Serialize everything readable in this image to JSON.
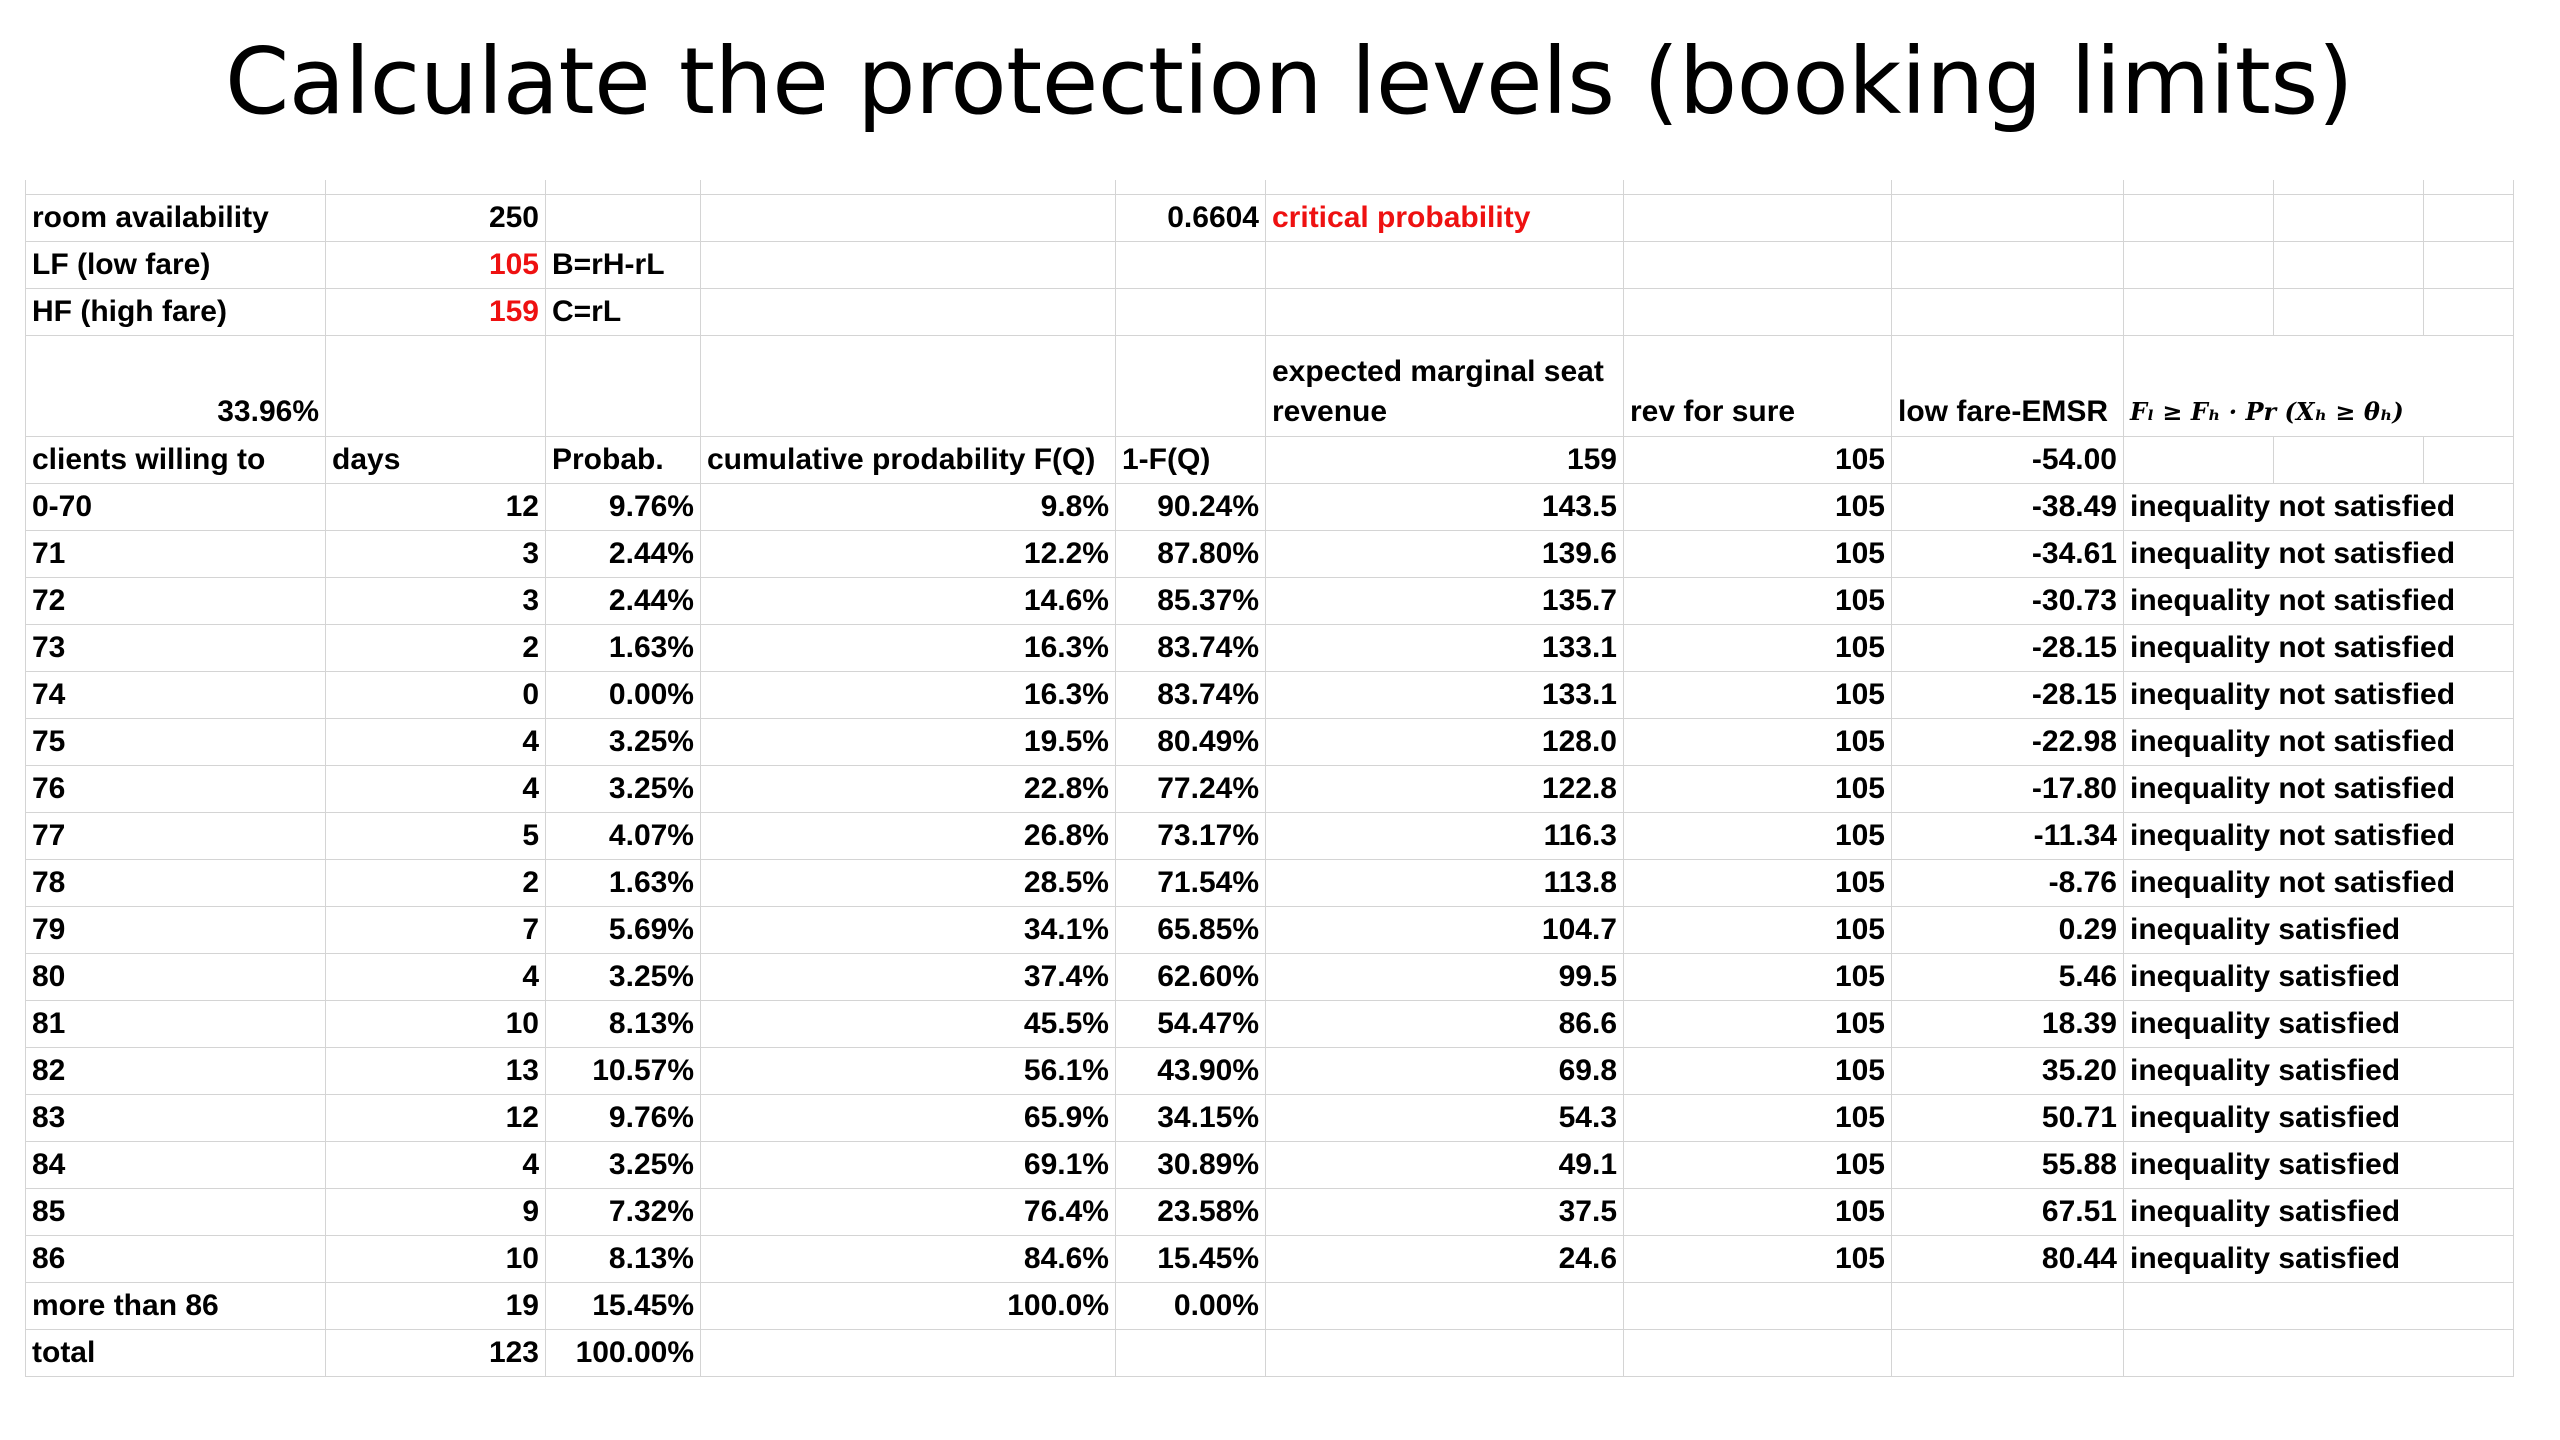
{
  "title": "Calculate the protection levels (booking limits)",
  "accent_red": "#ee1111",
  "top": {
    "room_availability_label": "room availability",
    "room_availability_value": "250",
    "critical_value": "0.6604",
    "critical_label": "critical probability",
    "lf_label": "LF (low fare)",
    "lf_value": "105",
    "lf_formula": "B=rH-rL",
    "hf_label": "HF (high fare)",
    "hf_value": "159",
    "hf_formula": "C=rL",
    "pct": "33.96%",
    "emsr_header_1": "expected marginal seat",
    "emsr_header_2": "revenue",
    "rev_header": "rev for sure",
    "lfemsr_header": "low fare-EMSR",
    "inequality_formula": "Fₗ  ≥  Fₕ · Pr (Xₕ ≥ θₕ)"
  },
  "headers": {
    "c0": "clients willing to",
    "c1": "days",
    "c2": "Probab.",
    "c3": "cumulative prodability F(Q)",
    "c4": "1-F(Q)",
    "c5": "159",
    "c6": "105",
    "c7": "-54.00"
  },
  "rows": [
    [
      "0-70",
      "12",
      "9.76%",
      "9.8%",
      "90.24%",
      "143.5",
      "105",
      "-38.49",
      "inequality  not satisfied"
    ],
    [
      "71",
      "3",
      "2.44%",
      "12.2%",
      "87.80%",
      "139.6",
      "105",
      "-34.61",
      "inequality  not satisfied"
    ],
    [
      "72",
      "3",
      "2.44%",
      "14.6%",
      "85.37%",
      "135.7",
      "105",
      "-30.73",
      "inequality  not satisfied"
    ],
    [
      "73",
      "2",
      "1.63%",
      "16.3%",
      "83.74%",
      "133.1",
      "105",
      "-28.15",
      "inequality  not satisfied"
    ],
    [
      "74",
      "0",
      "0.00%",
      "16.3%",
      "83.74%",
      "133.1",
      "105",
      "-28.15",
      "inequality  not satisfied"
    ],
    [
      "75",
      "4",
      "3.25%",
      "19.5%",
      "80.49%",
      "128.0",
      "105",
      "-22.98",
      "inequality  not satisfied"
    ],
    [
      "76",
      "4",
      "3.25%",
      "22.8%",
      "77.24%",
      "122.8",
      "105",
      "-17.80",
      "inequality  not satisfied"
    ],
    [
      "77",
      "5",
      "4.07%",
      "26.8%",
      "73.17%",
      "116.3",
      "105",
      "-11.34",
      "inequality  not satisfied"
    ],
    [
      "78",
      "2",
      "1.63%",
      "28.5%",
      "71.54%",
      "113.8",
      "105",
      "-8.76",
      "inequality  not satisfied"
    ],
    [
      "79",
      "7",
      "5.69%",
      "34.1%",
      "65.85%",
      "104.7",
      "105",
      "0.29",
      "inequality satisfied"
    ],
    [
      "80",
      "4",
      "3.25%",
      "37.4%",
      "62.60%",
      "99.5",
      "105",
      "5.46",
      "inequality satisfied"
    ],
    [
      "81",
      "10",
      "8.13%",
      "45.5%",
      "54.47%",
      "86.6",
      "105",
      "18.39",
      "inequality satisfied"
    ],
    [
      "82",
      "13",
      "10.57%",
      "56.1%",
      "43.90%",
      "69.8",
      "105",
      "35.20",
      "inequality satisfied"
    ],
    [
      "83",
      "12",
      "9.76%",
      "65.9%",
      "34.15%",
      "54.3",
      "105",
      "50.71",
      "inequality satisfied"
    ],
    [
      "84",
      "4",
      "3.25%",
      "69.1%",
      "30.89%",
      "49.1",
      "105",
      "55.88",
      "inequality satisfied"
    ],
    [
      "85",
      "9",
      "7.32%",
      "76.4%",
      "23.58%",
      "37.5",
      "105",
      "67.51",
      "inequality satisfied"
    ],
    [
      "86",
      "10",
      "8.13%",
      "84.6%",
      "15.45%",
      "24.6",
      "105",
      "80.44",
      "inequality satisfied"
    ]
  ],
  "more_row": [
    "more than 86",
    "19",
    "15.45%",
    "100.0%",
    "0.00%"
  ],
  "total_row": [
    "total",
    "123",
    "100.00%"
  ]
}
